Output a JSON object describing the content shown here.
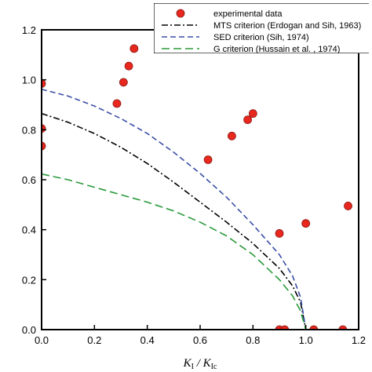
{
  "chart_data": {
    "type": "scatter",
    "title": "",
    "xlabel": "K_I / K_Ic",
    "xlabel_parts": {
      "k1": "K",
      "k1_sub": "I",
      "sep": " / ",
      "k2": "K",
      "k2_sub": "Ic"
    },
    "ylabel": "",
    "xlim": [
      0,
      1.2
    ],
    "ylim": [
      0,
      1.2
    ],
    "x_ticks": [
      "0.0",
      "0.2",
      "0.4",
      "0.6",
      "0.8",
      "1.0",
      "1.2"
    ],
    "y_ticks": [
      "0.0",
      "0.2",
      "0.4",
      "0.6",
      "0.8",
      "1.0",
      "1.2"
    ],
    "legend_position": "top-right",
    "grid": false,
    "series": [
      {
        "name": "experimental data",
        "kind": "scatter",
        "color": "#e8271f",
        "points": [
          [
            0.0,
            0.985
          ],
          [
            0.0,
            0.805
          ],
          [
            0.0,
            0.735
          ],
          [
            0.285,
            0.905
          ],
          [
            0.31,
            0.99
          ],
          [
            0.33,
            1.055
          ],
          [
            0.35,
            1.125
          ],
          [
            0.63,
            0.68
          ],
          [
            0.72,
            0.775
          ],
          [
            0.78,
            0.84
          ],
          [
            0.8,
            0.865
          ],
          [
            0.9,
            0.385
          ],
          [
            1.0,
            0.425
          ],
          [
            1.16,
            0.495
          ],
          [
            0.9,
            0.0
          ],
          [
            0.92,
            0.0
          ],
          [
            1.03,
            0.0
          ],
          [
            1.14,
            0.0
          ]
        ]
      },
      {
        "name": "MTS criterion (Erdogan and Sih, 1963)",
        "kind": "line",
        "color": "#000000",
        "dash": "dash-dot",
        "points": [
          [
            0.0,
            0.865
          ],
          [
            0.1,
            0.83
          ],
          [
            0.2,
            0.785
          ],
          [
            0.3,
            0.73
          ],
          [
            0.4,
            0.665
          ],
          [
            0.5,
            0.59
          ],
          [
            0.6,
            0.51
          ],
          [
            0.7,
            0.43
          ],
          [
            0.8,
            0.345
          ],
          [
            0.9,
            0.245
          ],
          [
            0.95,
            0.175
          ],
          [
            0.98,
            0.11
          ],
          [
            1.0,
            0.0
          ]
        ]
      },
      {
        "name": "SED criterion (Sih, 1974)",
        "kind": "line",
        "color": "#3a4ea6",
        "dash": "dash",
        "points": [
          [
            0.0,
            0.962
          ],
          [
            0.1,
            0.935
          ],
          [
            0.2,
            0.895
          ],
          [
            0.3,
            0.845
          ],
          [
            0.4,
            0.785
          ],
          [
            0.5,
            0.71
          ],
          [
            0.6,
            0.625
          ],
          [
            0.7,
            0.53
          ],
          [
            0.8,
            0.42
          ],
          [
            0.9,
            0.3
          ],
          [
            0.95,
            0.215
          ],
          [
            0.98,
            0.13
          ],
          [
            1.0,
            0.0
          ]
        ]
      },
      {
        "name": "G criterion (Hussain et al. , 1974)",
        "kind": "line",
        "color": "#2a9a3a",
        "dash": "long-dash",
        "points": [
          [
            0.0,
            0.623
          ],
          [
            0.1,
            0.6
          ],
          [
            0.2,
            0.57
          ],
          [
            0.3,
            0.54
          ],
          [
            0.4,
            0.51
          ],
          [
            0.5,
            0.475
          ],
          [
            0.6,
            0.43
          ],
          [
            0.7,
            0.375
          ],
          [
            0.8,
            0.3
          ],
          [
            0.9,
            0.2
          ],
          [
            0.95,
            0.135
          ],
          [
            0.98,
            0.075
          ],
          [
            1.0,
            0.0
          ]
        ]
      }
    ]
  }
}
